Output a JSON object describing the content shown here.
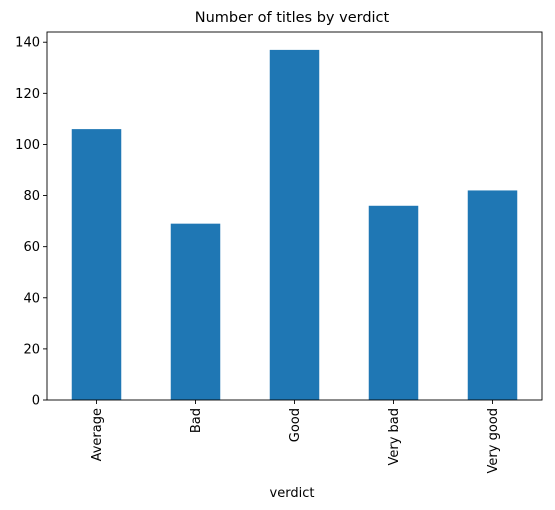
{
  "chart_data": {
    "type": "bar",
    "title": "Number of titles by verdict",
    "xlabel": "verdict",
    "ylabel": "",
    "categories": [
      "Average",
      "Bad",
      "Good",
      "Very bad",
      "Very good"
    ],
    "values": [
      106,
      69,
      137,
      76,
      82
    ],
    "ylim": [
      0,
      144
    ],
    "yticks": [
      0,
      20,
      40,
      60,
      80,
      100,
      120,
      140
    ],
    "grid": false,
    "legend": "none",
    "bar_color": "#1f77b4"
  }
}
